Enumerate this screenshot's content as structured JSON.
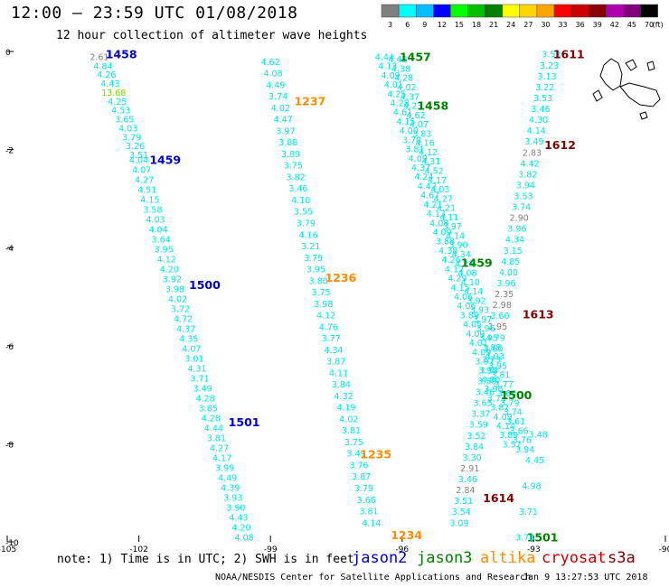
{
  "header": {
    "title": "12:00 – 23:59 UTC 01/08/2018",
    "subtitle": "12 hour collection of altimeter wave heights"
  },
  "footer": {
    "note": "note: 1) Time is in UTC; 2) SWH is in feet",
    "credit": "NOAA/NESDIS Center for Satellite Applications and Research",
    "timestamp": "Jan  9 13:27:53 UTC 2018"
  },
  "legend": {
    "unit": "(ft)",
    "ticks": [
      "3",
      "6",
      "9",
      "12",
      "15",
      "18",
      "21",
      "24",
      "27",
      "30",
      "33",
      "36",
      "39",
      "42",
      "45",
      "70"
    ],
    "colors": [
      "#808080",
      "#00ffff",
      "#00bfff",
      "#0000ff",
      "#00ff00",
      "#00c000",
      "#008000",
      "#ffff00",
      "#ffd700",
      "#ffa500",
      "#ff0000",
      "#cc0000",
      "#8b0000",
      "#b000b0",
      "#800080",
      "#000000"
    ],
    "satellites": [
      {
        "name": "jason2",
        "color": "#0000cc"
      },
      {
        "name": "jason3",
        "color": "#008000"
      },
      {
        "name": "altika",
        "color": "#ff8c00"
      },
      {
        "name": "cryosat",
        "color": "#cc0000"
      },
      {
        "name": "s3a",
        "color": "#800000"
      }
    ]
  },
  "chart_data": {
    "type": "scatter",
    "title": "12:00 – 23:59 UTC 01/08/2018",
    "subtitle": "12 hour collection of altimeter wave heights",
    "xlim": [
      -105,
      -90
    ],
    "ylim": [
      -10,
      0
    ],
    "x_ticks": [
      -105,
      -102,
      -99,
      -96,
      -93,
      -90
    ],
    "y_ticks": [
      0,
      -2,
      -4,
      -6,
      -8,
      -10
    ],
    "grid": false,
    "series": [
      {
        "name": "jason2",
        "color": "#0000cc",
        "times": [
          {
            "label": "1458",
            "lon": -102.4,
            "lat": -0.05
          },
          {
            "label": "1459",
            "lon": -101.4,
            "lat": -2.2
          },
          {
            "label": "1500",
            "lon": -100.5,
            "lat": -4.75
          },
          {
            "label": "1501",
            "lon": -99.6,
            "lat": -7.55
          }
        ],
        "tracks": [
          {
            "lon_start": -102.9,
            "lat_start": -0.1,
            "lon_end": -102.0,
            "lat_end": -2.1,
            "values": [
              "2.61",
              "4.84",
              "4.26",
              "4.43",
              "13.68",
              "4.25",
              "4.53",
              "3.65",
              "4.03",
              "3.79",
              "3.26",
              "3.51"
            ]
          },
          {
            "lon_start": -102.0,
            "lat_start": -2.2,
            "lon_end": -99.6,
            "lat_end": -9.9,
            "values": [
              "4.04",
              "4.07",
              "4.27",
              "4.51",
              "4.15",
              "3.58",
              "4.03",
              "4.04",
              "3.64",
              "3.95",
              "4.12",
              "4.20",
              "3.92",
              "3.98",
              "4.02",
              "3.72",
              "4.72",
              "4.37",
              "4.35",
              "4.07",
              "3.01",
              "4.31",
              "3.71",
              "3.49",
              "4.28",
              "3.85",
              "4.28",
              "4.44",
              "3.81",
              "4.27",
              "4.17",
              "3.99",
              "4.49",
              "4.39",
              "3.93",
              "3.90",
              "4.43",
              "4.20",
              "4.08"
            ]
          }
        ]
      },
      {
        "name": "altika",
        "color": "#ff8c00",
        "times": [
          {
            "label": "1237",
            "lon": -98.1,
            "lat": -1.0
          },
          {
            "label": "1236",
            "lon": -97.4,
            "lat": -4.6
          },
          {
            "label": "1235",
            "lon": -96.6,
            "lat": -8.2
          },
          {
            "label": "1234",
            "lon": -95.9,
            "lat": -9.85
          }
        ],
        "tracks": [
          {
            "lon_start": -99.0,
            "lat_start": -0.2,
            "lon_end": -96.7,
            "lat_end": -9.6,
            "values": [
              "4.62",
              "4.08",
              "4.49",
              "3.74",
              "4.02",
              "4.47",
              "3.97",
              "3.88",
              "3.89",
              "3.75",
              "3.82",
              "3.46",
              "4.10",
              "3.55",
              "3.79",
              "4.16",
              "3.21",
              "3.79",
              "3.95",
              "3.80",
              "3.75",
              "3.98",
              "4.12",
              "4.76",
              "3.77",
              "4.34",
              "3.87",
              "4.11",
              "3.84",
              "4.32",
              "4.19",
              "4.02",
              "3.81",
              "3.75",
              "3.49",
              "3.76",
              "3.87",
              "3.79",
              "3.66",
              "3.81",
              "4.14"
            ]
          }
        ]
      },
      {
        "name": "jason3",
        "color": "#008000",
        "times": [
          {
            "label": "1457",
            "lon": -95.7,
            "lat": -0.1
          },
          {
            "label": "1458",
            "lon": -95.3,
            "lat": -1.1
          },
          {
            "label": "1459",
            "lon": -94.3,
            "lat": -4.3
          },
          {
            "label": "1500",
            "lon": -93.4,
            "lat": -7.0
          },
          {
            "label": "1501",
            "lon": -92.8,
            "lat": -9.9
          }
        ],
        "tracks": [
          {
            "lon_start": -96.4,
            "lat_start": -0.1,
            "lon_end": -93.5,
            "lat_end": -8.0,
            "values": [
              "4.44",
              "4.13",
              "4.09",
              "4.01",
              "4.25",
              "4.28",
              "4.61",
              "4.15",
              "4.00",
              "3.70",
              "3.81",
              "4.09",
              "4.37",
              "4.24",
              "4.42",
              "4.67",
              "4.21",
              "4.13",
              "4.08",
              "4.09",
              "3.88",
              "4.38",
              "4.26",
              "4.12",
              "4.29",
              "4.15",
              "4.06",
              "4.06",
              "3.89",
              "4.05",
              "4.09",
              "4.01",
              "4.09",
              "3.97",
              "3.95",
              "4.00",
              "3.96",
              "3.73",
              "3.87",
              "4.09",
              "4.14",
              "3.89",
              "3.57"
            ]
          },
          {
            "lon_start": -96.1,
            "lat_start": -0.15,
            "lon_end": -93.2,
            "lat_end": -8.1,
            "values": [
              "4.42",
              "4.38",
              "4.28",
              "4.02",
              "4.37",
              "4.23",
              "4.62",
              "4.07",
              "3.83",
              "4.16",
              "4.12",
              "4.31",
              "4.52",
              "4.17",
              "4.03",
              "4.27",
              "4.21",
              "4.11",
              "3.97",
              "4.14",
              "3.90",
              "4.34",
              "4.23",
              "4.08",
              "4.10",
              "4.14",
              "3.92",
              "3.93",
              "3.97",
              "3.96",
              "3.95",
              "3.88",
              "4.03",
              "3.95",
              "3.81",
              "3.77",
              "3.60",
              "3.79",
              "3.74",
              "3.61",
              "3.66",
              "3.76",
              "3.94"
            ]
          }
        ]
      },
      {
        "name": "cryosat",
        "color": "#cc0000",
        "times": [],
        "tracks": []
      },
      {
        "name": "s3a",
        "color": "#800000",
        "times": [
          {
            "label": "1611",
            "lon": -92.2,
            "lat": -0.05
          },
          {
            "label": "1612",
            "lon": -92.4,
            "lat": -1.9
          },
          {
            "label": "1613",
            "lon": -92.9,
            "lat": -5.35
          },
          {
            "label": "1614",
            "lon": -93.8,
            "lat": -9.1
          }
        ],
        "tracks": [
          {
            "lon_start": -92.6,
            "lat_start": -0.05,
            "lon_end": -94.7,
            "lat_end": -9.6,
            "values": [
              "3.53",
              "3.23",
              "3.13",
              "3.22",
              "3.53",
              "3.46",
              "4.30",
              "4.14",
              "3.49",
              "2.83",
              "4.42",
              "3.82",
              "3.94",
              "3.53",
              "3.74",
              "2.90",
              "3.96",
              "4.34",
              "3.15",
              "4.85",
              "4.00",
              "3.96",
              "2.35",
              "2.98",
              "3.60",
              "1.95",
              "4.79",
              "3.60",
              "3.73",
              "3.54",
              "3.59",
              "3.46",
              "3.65",
              "3.37",
              "3.59",
              "3.52",
              "3.84",
              "3.30",
              "2.91",
              "3.46",
              "2.84",
              "3.51",
              "3.54",
              "3.09"
            ]
          },
          {
            "lon_start": -92.9,
            "lat_start": -7.8,
            "lon_end": -93.2,
            "lat_end": -9.9,
            "values": [
              "3.48",
              "4.45",
              "4.98",
              "3.71",
              "3.78"
            ]
          }
        ]
      }
    ]
  }
}
